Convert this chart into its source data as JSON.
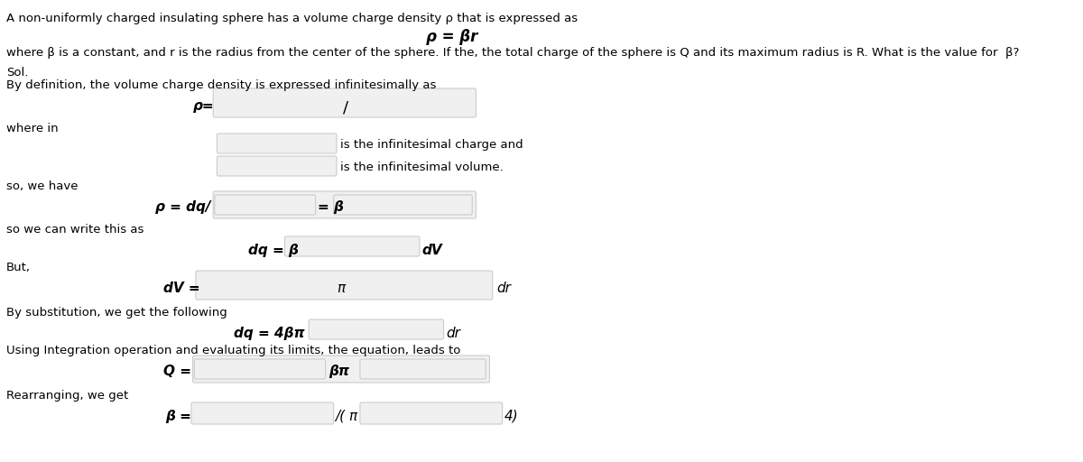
{
  "bg_color": "#ffffff",
  "text_color": "#000000",
  "box_color": "#f0f0f0",
  "box_edge_color": "#cccccc",
  "title_line": "A non-uniformly charged insulating sphere has a volume charge density ρ that is expressed as",
  "formula_main": "ρ = βr",
  "line2": "where β is a constant, and r is the radius from the center of the sphere. If the, the total charge of the sphere is Q and its maximum radius is R. What is the value for  β?",
  "sol_label": "Sol.",
  "sol_line": "By definition, the volume charge density is expressed infinitesimally as",
  "rho_eq_label": "ρ=",
  "slash_label": "/",
  "wherein_label": "where in",
  "inf_charge_text": "is the infinitesimal charge and",
  "inf_volume_text": "is the infinitesimal volume.",
  "so_we_have_label": "so, we have",
  "rho_dq_label": "ρ = dq/",
  "eq_beta_label": "= β",
  "so_write_label": "so we can write this as",
  "dq_eq_beta_label": "dq = β",
  "dv_label": "dV",
  "but_label": "But,",
  "dV_eq_label": "dV =",
  "pi_label": "π",
  "dr_label": "dr",
  "by_sub_label": "By substitution, we get the following",
  "dq_4bpi_label": "dq = 4βπ",
  "dr2_label": "dr",
  "using_int_label": "Using Integration operation and evaluating its limits, the equation, leads to",
  "Q_eq_label": "Q =",
  "beta_pi_label": "βπ",
  "rearranging_label": "Rearranging, we get",
  "beta_eq_label": "β =",
  "denom_label": "/( π",
  "power_label": "4)"
}
